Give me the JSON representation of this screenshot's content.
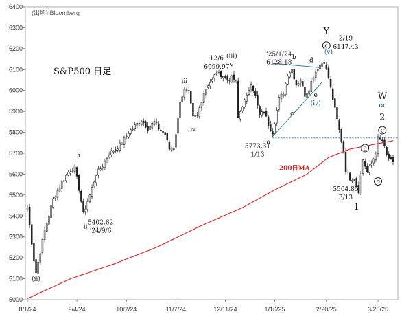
{
  "chart_data": {
    "type": "candlestick",
    "title": "S&P500 日足",
    "source": "(出所) Bloomberg",
    "ylim": [
      5000,
      6400
    ],
    "y_ticks": [
      5000,
      5100,
      5200,
      5300,
      5400,
      5500,
      5600,
      5700,
      5800,
      5900,
      6000,
      6100,
      6200,
      6300,
      6400
    ],
    "x_ticks": [
      "8/1/24",
      "9/4/24",
      "10/7/24",
      "11/7/24",
      "12/11/24",
      "1/16/25",
      "2/20/25",
      "3/25/25"
    ],
    "x_tick_index": [
      0,
      23,
      46,
      69,
      92,
      115,
      139,
      163
    ],
    "n_days": 171,
    "close_anchors": [
      [
        0,
        5440
      ],
      [
        3,
        5190
      ],
      [
        4,
        5130
      ],
      [
        8,
        5330
      ],
      [
        12,
        5480
      ],
      [
        16,
        5560
      ],
      [
        19,
        5610
      ],
      [
        22,
        5630
      ],
      [
        24,
        5530
      ],
      [
        26,
        5410
      ],
      [
        29,
        5500
      ],
      [
        32,
        5600
      ],
      [
        35,
        5640
      ],
      [
        38,
        5700
      ],
      [
        41,
        5720
      ],
      [
        44,
        5750
      ],
      [
        47,
        5800
      ],
      [
        50,
        5830
      ],
      [
        53,
        5860
      ],
      [
        56,
        5820
      ],
      [
        59,
        5850
      ],
      [
        62,
        5810
      ],
      [
        64,
        5790
      ],
      [
        66,
        5720
      ],
      [
        68,
        5730
      ],
      [
        70,
        5860
      ],
      [
        71,
        5950
      ],
      [
        73,
        6000
      ],
      [
        75,
        5990
      ],
      [
        77,
        5870
      ],
      [
        79,
        5880
      ],
      [
        82,
        5990
      ],
      [
        84,
        6030
      ],
      [
        86,
        6050
      ],
      [
        88,
        6090
      ],
      [
        91,
        6070
      ],
      [
        93,
        6050
      ],
      [
        95,
        6060
      ],
      [
        97,
        6040
      ],
      [
        98,
        5870
      ],
      [
        100,
        5930
      ],
      [
        102,
        5970
      ],
      [
        104,
        6040
      ],
      [
        106,
        5970
      ],
      [
        108,
        5880
      ],
      [
        110,
        5900
      ],
      [
        112,
        5840
      ],
      [
        114,
        5800
      ],
      [
        115,
        5850
      ],
      [
        117,
        5960
      ],
      [
        119,
        5990
      ],
      [
        121,
        6080
      ],
      [
        123,
        6100
      ],
      [
        125,
        6030
      ],
      [
        127,
        6050
      ],
      [
        129,
        5980
      ],
      [
        131,
        6010
      ],
      [
        133,
        6070
      ],
      [
        135,
        6110
      ],
      [
        137,
        6130
      ],
      [
        138,
        6140
      ],
      [
        140,
        6060
      ],
      [
        142,
        5960
      ],
      [
        144,
        5860
      ],
      [
        146,
        5760
      ],
      [
        147,
        5710
      ],
      [
        148,
        5620
      ],
      [
        150,
        5580
      ],
      [
        152,
        5580
      ],
      [
        154,
        5520
      ],
      [
        156,
        5670
      ],
      [
        158,
        5610
      ],
      [
        160,
        5650
      ],
      [
        162,
        5700
      ],
      [
        163,
        5770
      ],
      [
        165,
        5760
      ],
      [
        167,
        5690
      ],
      [
        170,
        5650
      ]
    ],
    "ma200_anchors": [
      [
        0,
        5005
      ],
      [
        20,
        5100
      ],
      [
        40,
        5170
      ],
      [
        60,
        5250
      ],
      [
        80,
        5350
      ],
      [
        100,
        5440
      ],
      [
        115,
        5525
      ],
      [
        130,
        5600
      ],
      [
        140,
        5680
      ],
      [
        150,
        5720
      ],
      [
        160,
        5740
      ],
      [
        170,
        5760
      ]
    ],
    "reference_level": 5773.31,
    "trendlines": [
      {
        "from": [
          114,
          6130
        ],
        "to": [
          136,
          6110
        ]
      },
      {
        "from": [
          114,
          5780
        ],
        "to": [
          137,
          6040
        ]
      }
    ],
    "ma_label": "200日MA",
    "annotations": [
      {
        "text": "(ii)",
        "x": 4,
        "y": 5090,
        "cls": "ann"
      },
      {
        "text": "i",
        "x": 24,
        "y": 5680,
        "cls": "ann"
      },
      {
        "text": "ii",
        "x": 27,
        "y": 5340,
        "cls": "ann"
      },
      {
        "text": "5402.62",
        "x": 34,
        "y": 5360,
        "cls": "ann"
      },
      {
        "text": "'24/9/6",
        "x": 34,
        "y": 5320,
        "cls": "ann"
      },
      {
        "text": "iii",
        "x": 73,
        "y": 6035,
        "cls": "ann"
      },
      {
        "text": "iv",
        "x": 77,
        "y": 5805,
        "cls": "ann"
      },
      {
        "text": "12/6",
        "x": 88,
        "y": 6145,
        "cls": "ann"
      },
      {
        "text": "6099.97",
        "x": 88,
        "y": 6105,
        "cls": "ann"
      },
      {
        "text": "(iii)",
        "x": 95,
        "y": 6155,
        "cls": "ann"
      },
      {
        "text": "v",
        "x": 95,
        "y": 6115,
        "cls": "ann"
      },
      {
        "text": "'25/1/24",
        "x": 117,
        "y": 6165,
        "cls": "ann"
      },
      {
        "text": "6128.18",
        "x": 117,
        "y": 6125,
        "cls": "ann"
      },
      {
        "text": "b",
        "x": 124,
        "y": 6150,
        "cls": "ann"
      },
      {
        "text": "d",
        "x": 132,
        "y": 6135,
        "cls": "ann"
      },
      {
        "text": "Y",
        "x": 139,
        "y": 6270,
        "cls": "ann"
      },
      {
        "text": "(v)",
        "x": 140,
        "y": 6175,
        "cls": "ann-blue"
      },
      {
        "text": "2/19",
        "x": 148,
        "y": 6240,
        "cls": "ann"
      },
      {
        "text": "6147.43",
        "x": 148,
        "y": 6200,
        "cls": "ann"
      },
      {
        "text": "e",
        "x": 134,
        "y": 5970,
        "cls": "ann"
      },
      {
        "text": "(iv)",
        "x": 134,
        "y": 5930,
        "cls": "ann-blue"
      },
      {
        "text": "c",
        "x": 123,
        "y": 5880,
        "cls": "ann"
      },
      {
        "text": "a",
        "x": 112,
        "y": 5745,
        "cls": "ann"
      },
      {
        "text": "5773.31",
        "x": 107,
        "y": 5725,
        "cls": "ann"
      },
      {
        "text": "1/13",
        "x": 107,
        "y": 5685,
        "cls": "ann"
      },
      {
        "text": "W",
        "x": 165,
        "y": 5960,
        "cls": "ann"
      },
      {
        "text": "or",
        "x": 165,
        "y": 5920,
        "cls": "ann-blue"
      },
      {
        "text": "2",
        "x": 165,
        "y": 5860,
        "cls": "ann"
      },
      {
        "text": "5504.85",
        "x": 148,
        "y": 5520,
        "cls": "ann"
      },
      {
        "text": "3/13",
        "x": 148,
        "y": 5480,
        "cls": "ann"
      },
      {
        "text": "1",
        "x": 153,
        "y": 5430,
        "cls": "ann"
      }
    ],
    "circled_labels": [
      {
        "text": "c",
        "x": 139,
        "y": 6215,
        "blue": false
      },
      {
        "text": "c",
        "x": 165,
        "y": 5810,
        "blue": false
      },
      {
        "text": "a",
        "x": 157,
        "y": 5725,
        "blue": false
      },
      {
        "text": "b",
        "x": 163,
        "y": 5565,
        "blue": false
      }
    ]
  }
}
